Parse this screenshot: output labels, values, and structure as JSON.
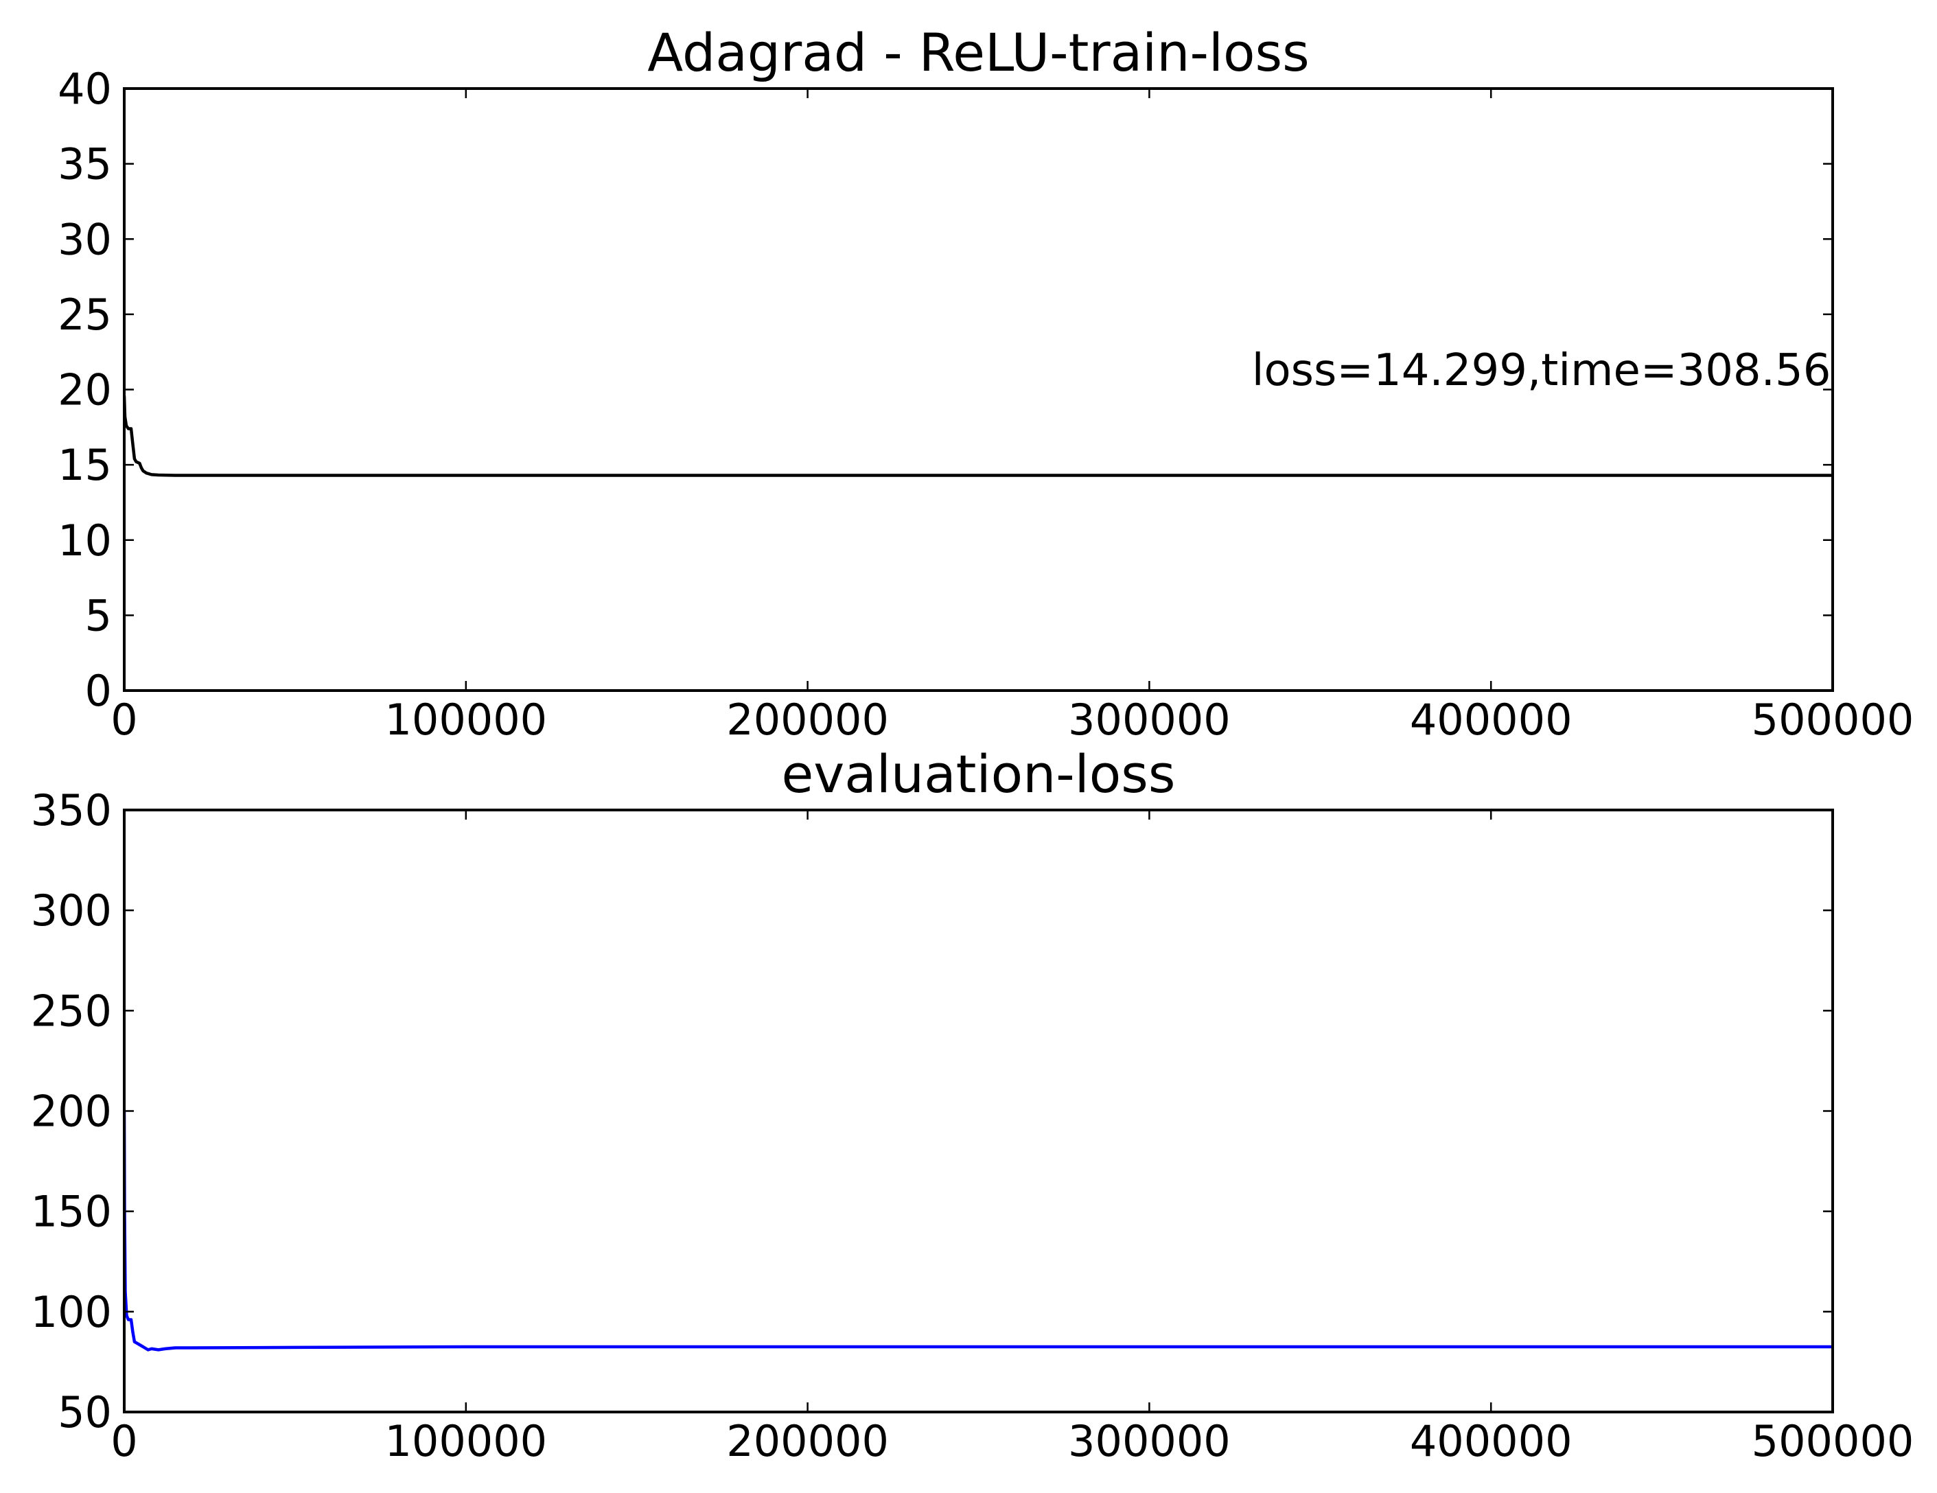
{
  "chart_data": [
    {
      "type": "line",
      "title": "Adagrad - ReLU-train-loss",
      "xlabel": "",
      "ylabel": "",
      "xlim": [
        0,
        500000
      ],
      "ylim": [
        0,
        40
      ],
      "xticks": [
        0,
        100000,
        200000,
        300000,
        400000,
        500000
      ],
      "xtick_labels": [
        "0",
        "100000",
        "200000",
        "300000",
        "400000",
        "500000"
      ],
      "yticks": [
        0,
        5,
        10,
        15,
        20,
        25,
        30,
        35,
        40
      ],
      "ytick_labels": [
        "0",
        "5",
        "10",
        "15",
        "20",
        "25",
        "30",
        "35",
        "40"
      ],
      "grid": false,
      "annotation": {
        "text": "loss=14.299,time=308.56",
        "x": 330000,
        "y": 20.3
      },
      "series": [
        {
          "color": "#000000",
          "x": [
            0,
            200,
            600,
            1200,
            2000,
            2500,
            3000,
            3500,
            4500,
            5000,
            5500,
            6500,
            8000,
            10000,
            15000,
            20000,
            50000,
            100000,
            200000,
            300000,
            400000,
            500000
          ],
          "y": [
            19.6,
            18.2,
            17.6,
            17.4,
            17.4,
            16.4,
            15.4,
            15.2,
            15.1,
            14.8,
            14.6,
            14.45,
            14.35,
            14.32,
            14.3,
            14.3,
            14.3,
            14.3,
            14.3,
            14.3,
            14.299,
            14.299
          ]
        }
      ]
    },
    {
      "type": "line",
      "title": "evaluation-loss",
      "xlabel": "",
      "ylabel": "",
      "xlim": [
        0,
        500000
      ],
      "ylim": [
        50,
        350
      ],
      "xticks": [
        0,
        100000,
        200000,
        300000,
        400000,
        500000
      ],
      "xtick_labels": [
        "0",
        "100000",
        "200000",
        "300000",
        "400000",
        "500000"
      ],
      "yticks": [
        50,
        100,
        150,
        200,
        250,
        300,
        350
      ],
      "ytick_labels": [
        "50",
        "100",
        "150",
        "200",
        "250",
        "300",
        "350"
      ],
      "grid": false,
      "series": [
        {
          "color": "#0000ff",
          "x": [
            0,
            100,
            300,
            700,
            1200,
            2000,
            2500,
            3000,
            4000,
            5000,
            6000,
            7000,
            8000,
            10000,
            12000,
            15000,
            20000,
            50000,
            100000,
            200000,
            300000,
            400000,
            500000
          ],
          "y": [
            200,
            150,
            110,
            98,
            96,
            96,
            90,
            85,
            84,
            83,
            82,
            81,
            81.5,
            81,
            81.5,
            82,
            82,
            82.2,
            82.5,
            82.5,
            82.5,
            82.5,
            82.5
          ]
        }
      ]
    }
  ]
}
